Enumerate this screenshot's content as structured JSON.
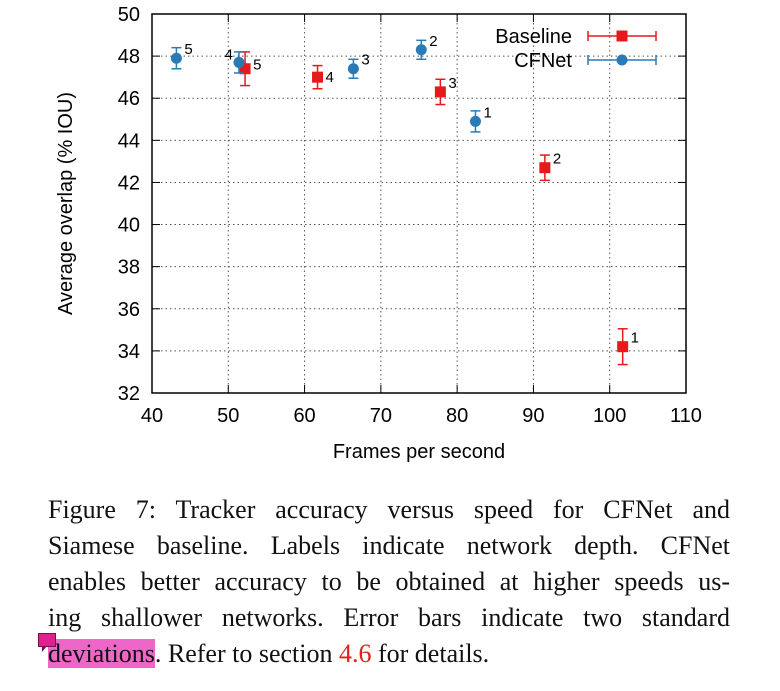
{
  "chart_data": {
    "type": "scatter",
    "xlabel": "Frames per second",
    "ylabel": "Average overlap (% IOU)",
    "xlim": [
      40,
      110
    ],
    "ylim": [
      32,
      50
    ],
    "xticks": [
      40,
      50,
      60,
      70,
      80,
      90,
      100,
      110
    ],
    "yticks": [
      32,
      34,
      36,
      38,
      40,
      42,
      44,
      46,
      48,
      50
    ],
    "grid": true,
    "legend_position": "top-right",
    "series": [
      {
        "name": "Baseline",
        "color": "#e41a1c",
        "marker": "square",
        "points": [
          {
            "label": "1",
            "x": 101.7,
            "y": 34.2,
            "yerr": 0.85
          },
          {
            "label": "2",
            "x": 91.5,
            "y": 42.7,
            "yerr": 0.6
          },
          {
            "label": "3",
            "x": 77.8,
            "y": 46.3,
            "yerr": 0.6
          },
          {
            "label": "4",
            "x": 61.7,
            "y": 47.0,
            "yerr": 0.55
          },
          {
            "label": "5",
            "x": 52.2,
            "y": 47.4,
            "yerr": 0.8
          }
        ]
      },
      {
        "name": "CFNet",
        "color": "#2a7ab5",
        "marker": "circle",
        "points": [
          {
            "label": "1",
            "x": 82.4,
            "y": 44.9,
            "yerr": 0.5
          },
          {
            "label": "2",
            "x": 75.3,
            "y": 48.3,
            "yerr": 0.45
          },
          {
            "label": "3",
            "x": 66.4,
            "y": 47.4,
            "yerr": 0.45
          },
          {
            "label": "4",
            "x": 51.4,
            "y": 47.7,
            "yerr": 0.5
          },
          {
            "label": "5",
            "x": 43.2,
            "y": 47.9,
            "yerr": 0.5
          }
        ]
      }
    ]
  },
  "caption": {
    "line1": "Figure 7:  Tracker accuracy versus speed for CFNet and",
    "line2": "Siamese baseline.  Labels indicate network depth.  CFNet",
    "line3": "enables better accuracy to be obtained at higher speeds us-",
    "line4": "ing shallower networks.  Error bars indicate two standard",
    "line5_highlight": "deviations",
    "line5_pre": ".  Refer to section ",
    "line5_ref": "4.6",
    "line5_post": " for details."
  }
}
